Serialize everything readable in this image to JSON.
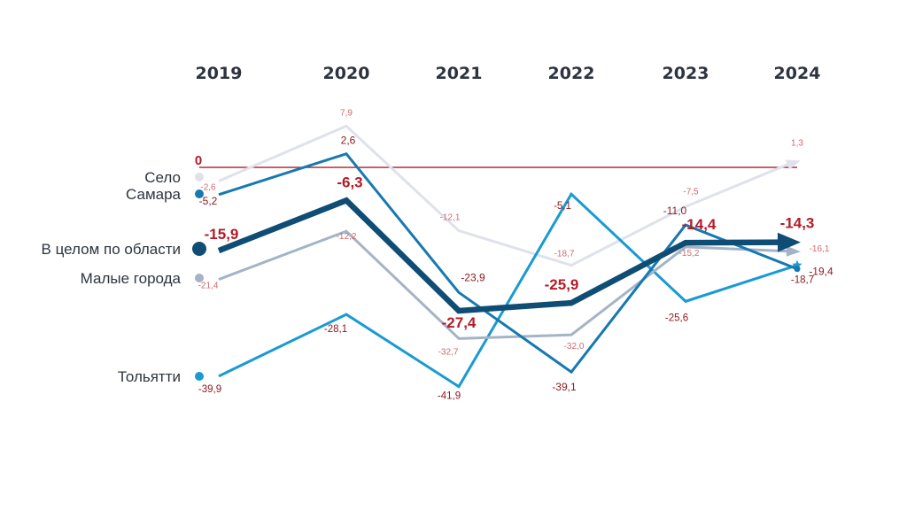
{
  "chart_data": {
    "type": "line",
    "x": [
      "2019",
      "2020",
      "2021",
      "2022",
      "2023",
      "2024"
    ],
    "ylim": [
      -45,
      10
    ],
    "grid": false,
    "legend_position": "left",
    "reference_line": {
      "value": 0,
      "label": "0",
      "color": "#b31b28"
    },
    "series": [
      {
        "name": "Село",
        "key": "selo",
        "color": "#dfe2ea",
        "values": [
          -2.6,
          7.9,
          -12.1,
          -18.7,
          -7.5,
          1.3
        ],
        "labels": [
          "-2,6",
          "7,9",
          "-12,1",
          "-18,7",
          "-7,5",
          "1,3"
        ],
        "label_color": "#d2686e"
      },
      {
        "name": "Самара",
        "key": "samara",
        "color": "#1679b0",
        "values": [
          -5.2,
          2.6,
          -23.9,
          -39.1,
          -11.0,
          -19.4
        ],
        "labels": [
          "-5,2",
          "2,6",
          "-23,9",
          "-39,1",
          "-11,0",
          "-19,4"
        ],
        "label_color": "#8d1a22"
      },
      {
        "name": "В целом по области",
        "key": "oblast",
        "color": "#0f4d75",
        "values": [
          -15.9,
          -6.3,
          -27.4,
          -25.9,
          -14.4,
          -14.3
        ],
        "labels": [
          "-15,9",
          "-6,3",
          "-27,4",
          "-25,9",
          "-14,4",
          "-14,3"
        ],
        "label_color": "#b31b28"
      },
      {
        "name": "Малые города",
        "key": "malye",
        "color": "#a4b3c6",
        "values": [
          -21.4,
          -12.2,
          -32.7,
          -32.0,
          -15.2,
          -16.1
        ],
        "labels": [
          "-21,4",
          "-12,2",
          "-32,7",
          "-32,0",
          "-15,2",
          "-16,1"
        ],
        "label_color": "#d2686e"
      },
      {
        "name": "Тольятти",
        "key": "tolyatti",
        "color": "#199ad3",
        "values": [
          -39.9,
          -28.1,
          -41.9,
          -5.1,
          -25.6,
          -18.7
        ],
        "labels": [
          "-39,9",
          "-28,1",
          "-41,9",
          "-5,1",
          "-25,6",
          "-18,7"
        ],
        "label_color": "#8d1a22"
      }
    ]
  }
}
